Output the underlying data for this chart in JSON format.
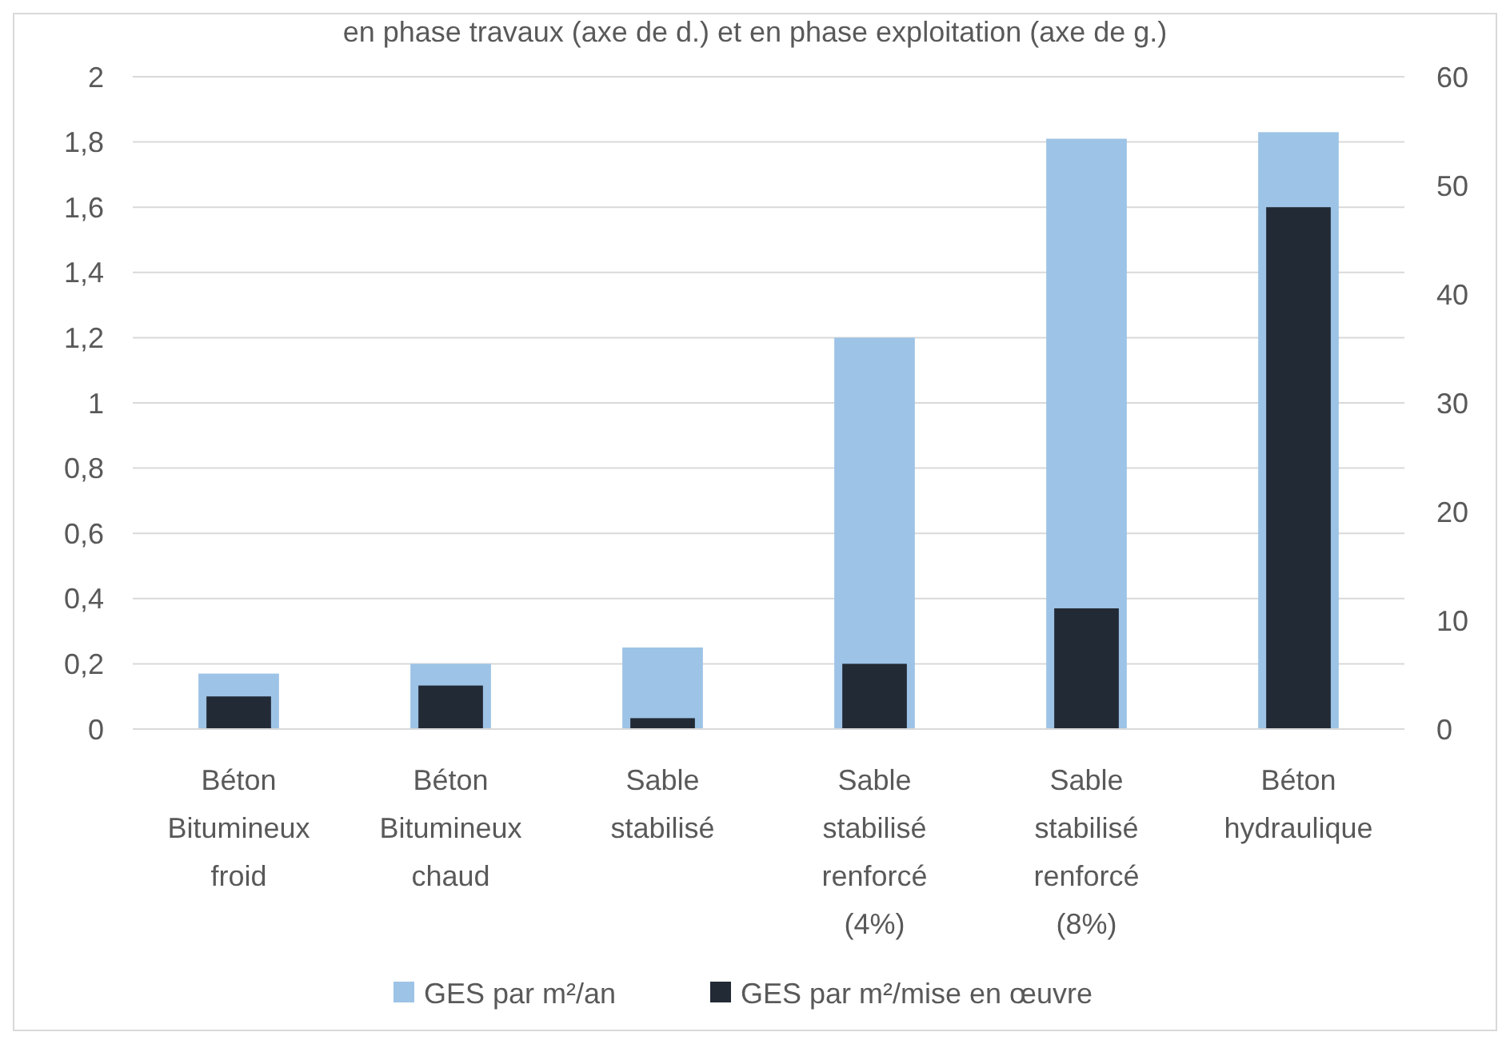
{
  "chart_data": {
    "type": "bar",
    "title": "en phase travaux (axe de d.) et en phase exploitation (axe de g.)",
    "categories": [
      "Béton Bitumineux froid",
      "Béton Bitumineux chaud",
      "Sable stabilisé",
      "Sable stabilisé renforcé (4%)",
      "Sable stabilisé renforcé (8%)",
      "Béton hydraulique"
    ],
    "series": [
      {
        "name": "GES par m²/an",
        "color": "#9dc3e6",
        "values": [
          0.17,
          0.2,
          0.25,
          1.2,
          1.81,
          1.83
        ]
      },
      {
        "name": "GES par m²/mise en œuvre",
        "color": "#222a35",
        "axis": "y2",
        "values": [
          3,
          4,
          1,
          6,
          11.1,
          48
        ]
      }
    ],
    "ylim": [
      0,
      2
    ],
    "yticks": [
      0,
      {
        "value": 0.2,
        "label": "0,2"
      },
      {
        "value": 0.4,
        "label": "0,4"
      },
      {
        "value": 0.6,
        "label": "0,6"
      },
      {
        "value": 0.8,
        "label": "0,8"
      },
      1,
      {
        "value": 1.2,
        "label": "1,2"
      },
      {
        "value": 1.4,
        "label": "1,4"
      },
      {
        "value": 1.6,
        "label": "1,6"
      },
      {
        "value": 1.8,
        "label": "1,8"
      },
      2
    ],
    "y2lim": [
      0,
      60
    ],
    "y2ticks": [
      0,
      10,
      20,
      30,
      40,
      50,
      60
    ],
    "grid": "y",
    "legend": "bottom"
  }
}
